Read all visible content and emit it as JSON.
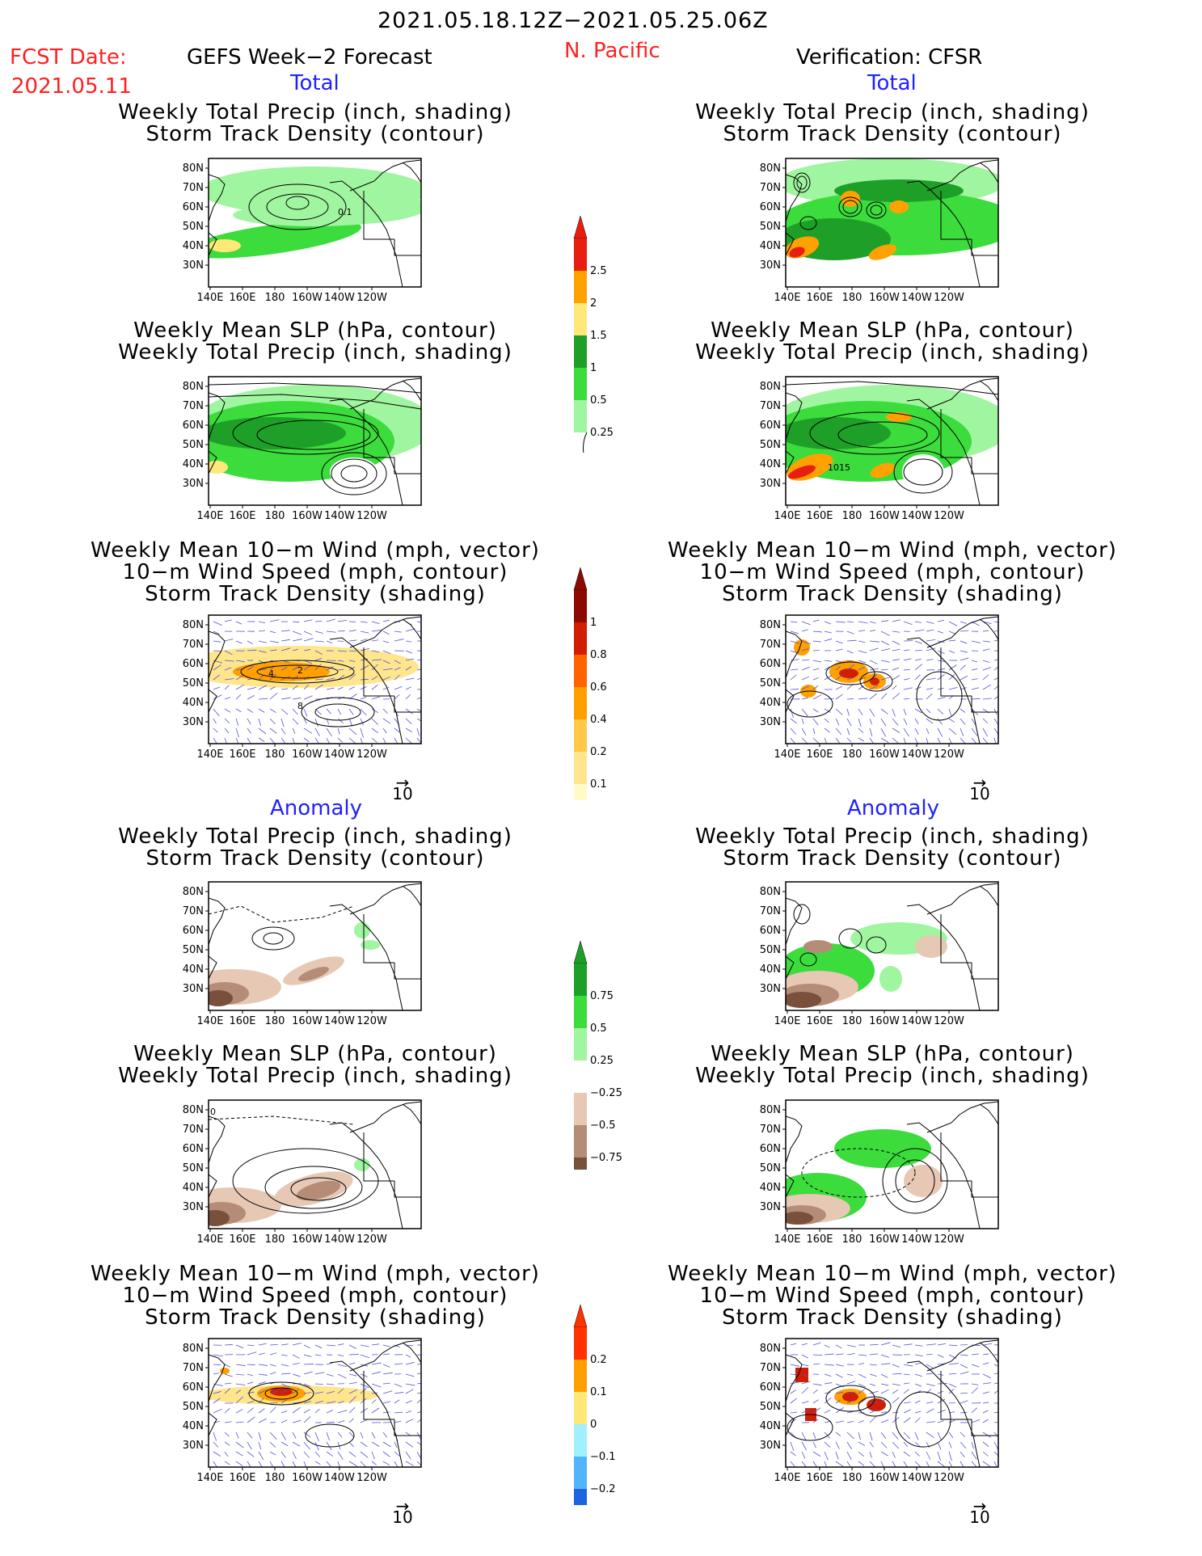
{
  "header": {
    "date_range": "2021.05.18.12Z−2021.05.25.06Z",
    "fcst_date_label": "FCST Date:",
    "fcst_date_value": "2021.05.11",
    "forecast_label": "GEFS Week−2 Forecast",
    "region": "N. Pacific",
    "verification_label": "Verification: CFSR"
  },
  "sections": {
    "total": "Total",
    "anomaly": "Anomaly"
  },
  "titles": {
    "precip_track": [
      "Weekly Total Precip (inch, shading)",
      "Storm Track Density (contour)"
    ],
    "slp_precip": [
      "Weekly Mean SLP (hPa, contour)",
      "Weekly Total Precip (inch, shading)"
    ],
    "wind_track": [
      "Weekly Mean 10−m Wind (mph, vector)",
      "10−m Wind Speed (mph, contour)",
      "Storm Track Density (shading)"
    ]
  },
  "axes": {
    "lat_ticks": [
      "80N",
      "70N",
      "60N",
      "50N",
      "40N",
      "30N"
    ],
    "lon_ticks": [
      "140E",
      "160E",
      "180",
      "160W",
      "140W",
      "120W"
    ]
  },
  "vector_ref": "10",
  "contour_labels": {
    "fc_track": "0.1",
    "an_slp": "1015",
    "fc_wind_a": "2",
    "fc_wind_b": "4",
    "fc_wind_c": "8",
    "fc_anom_slp": "0"
  },
  "colorbars": {
    "total_precip": {
      "labels": [
        "2.5",
        "2",
        "1.5",
        "1",
        "0.5",
        "0.25"
      ],
      "colors": [
        "#e81e10",
        "#ffa200",
        "#ffe87a",
        "#1ea028",
        "#3cdc3c",
        "#a0f5a0"
      ]
    },
    "track_density": {
      "labels": [
        "1",
        "0.8",
        "0.6",
        "0.4",
        "0.2",
        "0.1"
      ],
      "colors": [
        "#8c0a00",
        "#d21e00",
        "#ff6400",
        "#ffa000",
        "#ffc846",
        "#ffe68c",
        "#fffac8"
      ]
    },
    "precip_anom": {
      "labels": [
        "0.75",
        "0.5",
        "0.25",
        "−0.25",
        "−0.5",
        "−0.75"
      ],
      "colors": [
        "#1ea028",
        "#3cdc3c",
        "#a0f5a0",
        "#ffffff",
        "#e6c8b4",
        "#b48c78",
        "#78503c"
      ]
    },
    "track_anom": {
      "labels": [
        "0.2",
        "0.1",
        "0",
        "−0.1",
        "−0.2"
      ],
      "colors": [
        "#ff3200",
        "#ffa000",
        "#ffe878",
        "#a0f0ff",
        "#50b4ff",
        "#1e64dc"
      ]
    }
  },
  "colors": {
    "precip_light": "#a0f5a0",
    "precip_mid": "#3cdc3c",
    "precip_dark": "#1ea028",
    "precip_yellow": "#ffe87a",
    "precip_orange": "#ffa200",
    "precip_red": "#e81e10",
    "neg_light": "#e6c8b4",
    "neg_mid": "#b48c78",
    "neg_dark": "#78503c",
    "vector": "#5050e0",
    "track_yellow": "#ffe68c",
    "track_orange": "#ffa000",
    "track_red": "#d21e00"
  }
}
